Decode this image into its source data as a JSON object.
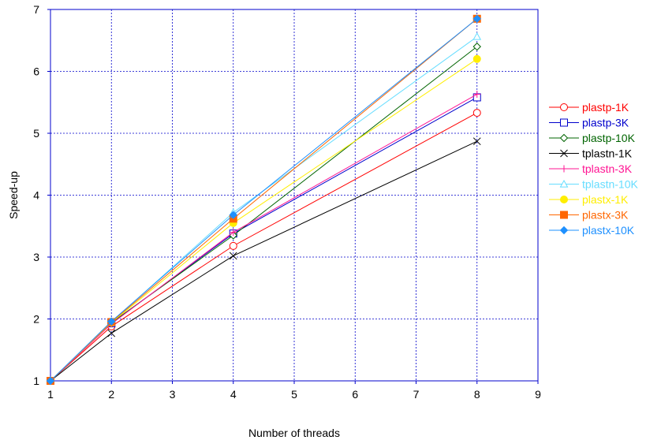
{
  "chart_data": {
    "type": "line",
    "title": "",
    "xlabel": "Number of threads",
    "ylabel": "Speed-up",
    "xlim": [
      1,
      9
    ],
    "ylim": [
      1,
      7
    ],
    "xticks": [
      "1",
      "2",
      "3",
      "4",
      "5",
      "6",
      "7",
      "8",
      "9"
    ],
    "yticks": [
      "1",
      "2",
      "3",
      "4",
      "5",
      "6",
      "7"
    ],
    "grid": true,
    "legend_position": "right",
    "x": [
      1,
      2,
      4,
      8
    ],
    "series": [
      {
        "name": "plastp-1K",
        "color": "#ff0000",
        "marker": "circle-open",
        "values": [
          1,
          1.88,
          3.18,
          5.33
        ]
      },
      {
        "name": "plastp-3K",
        "color": "#0000cc",
        "marker": "square-open",
        "values": [
          1,
          1.93,
          3.38,
          5.58
        ]
      },
      {
        "name": "plastp-10K",
        "color": "#006400",
        "marker": "diamond-open",
        "values": [
          1,
          1.94,
          3.35,
          6.4
        ]
      },
      {
        "name": "tplastn-1K",
        "color": "#000000",
        "marker": "x",
        "values": [
          1,
          1.77,
          3.02,
          4.87
        ]
      },
      {
        "name": "tplastn-3K",
        "color": "#ff1493",
        "marker": "plus",
        "values": [
          1,
          1.92,
          3.4,
          5.63
        ]
      },
      {
        "name": "tplastn-10K",
        "color": "#66ddff",
        "marker": "triangle-open",
        "values": [
          1,
          1.95,
          3.72,
          6.56
        ]
      },
      {
        "name": "plastx-1K",
        "color": "#ffee00",
        "marker": "circle-filled",
        "values": [
          1,
          1.94,
          3.55,
          6.2
        ]
      },
      {
        "name": "plastx-3K",
        "color": "#ff6600",
        "marker": "square-filled",
        "values": [
          1,
          1.95,
          3.62,
          6.85
        ]
      },
      {
        "name": "plastx-10K",
        "color": "#1e90ff",
        "marker": "diamond-filled",
        "values": [
          1,
          1.96,
          3.68,
          6.85
        ]
      }
    ]
  }
}
